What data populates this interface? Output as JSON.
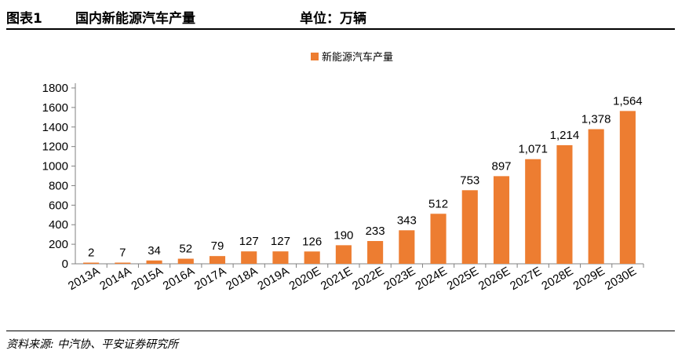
{
  "header": {
    "figure_label": "图表1",
    "title": "国内新能源汽车产量",
    "unit": "单位：万辆"
  },
  "source": "资料来源: 中汽协、平安证券研究所",
  "colors": {
    "bar": "#ED7D31",
    "axis": "#808080"
  },
  "chart_data": {
    "type": "bar",
    "categories": [
      "2013A",
      "2014A",
      "2015A",
      "2016A",
      "2017A",
      "2018A",
      "2019A",
      "2020E",
      "2021E",
      "2022E",
      "2023E",
      "2024E",
      "2025E",
      "2026E",
      "2027E",
      "2028E",
      "2029E",
      "2030E"
    ],
    "series": [
      {
        "name": "新能源汽车产量",
        "values": [
          2,
          7,
          34,
          52,
          79,
          127,
          127,
          126,
          190,
          233,
          343,
          512,
          753,
          897,
          1071,
          1214,
          1378,
          1564
        ],
        "labels": [
          "2",
          "7",
          "34",
          "52",
          "79",
          "127",
          "127",
          "126",
          "190",
          "233",
          "343",
          "512",
          "753",
          "897",
          "1,071",
          "1,214",
          "1,378",
          "1,564"
        ]
      }
    ],
    "y_ticks": [
      "0",
      "200",
      "400",
      "600",
      "800",
      "1000",
      "1200",
      "1400",
      "1600",
      "1800"
    ],
    "ylim": [
      0,
      1800
    ],
    "grid": false,
    "legend_position": "top-center"
  }
}
